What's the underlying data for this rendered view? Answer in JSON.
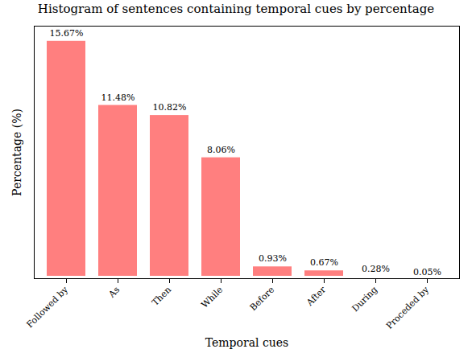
{
  "chart_data": {
    "type": "bar",
    "title": "Histogram of sentences containing temporal cues by percentage",
    "x_label": "Temporal cues",
    "y_label": "Percentage (%)",
    "categories": [
      "Followed by",
      "As",
      "Then",
      "While",
      "Before",
      "After",
      "During",
      "Proceded by"
    ],
    "values": [
      15.67,
      11.48,
      10.82,
      8.06,
      0.93,
      0.67,
      0.28,
      0.05
    ],
    "value_labels": [
      "15.67%",
      "11.48%",
      "10.82%",
      "8.06%",
      "0.93%",
      "0.67%",
      "0.28%",
      "0.05%"
    ],
    "color": "#ff7f7f",
    "ylim": [
      0,
      16.5
    ],
    "yticks": [],
    "grid": false,
    "data_labels": true,
    "tick_labels": "x"
  }
}
